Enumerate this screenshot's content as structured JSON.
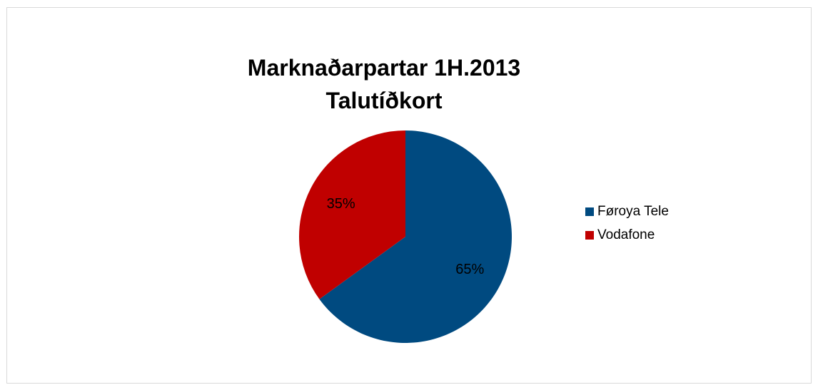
{
  "chart_data": {
    "type": "pie",
    "title_lines": [
      "Marknaðarpartar 1H.2013",
      "Talutíðkort"
    ],
    "series": [
      {
        "name": "Føroya Tele",
        "value": 65,
        "label": "65%",
        "color": "#004a80"
      },
      {
        "name": "Vodafone",
        "value": 35,
        "label": "35%",
        "color": "#c00000"
      }
    ],
    "legend_position": "right"
  }
}
